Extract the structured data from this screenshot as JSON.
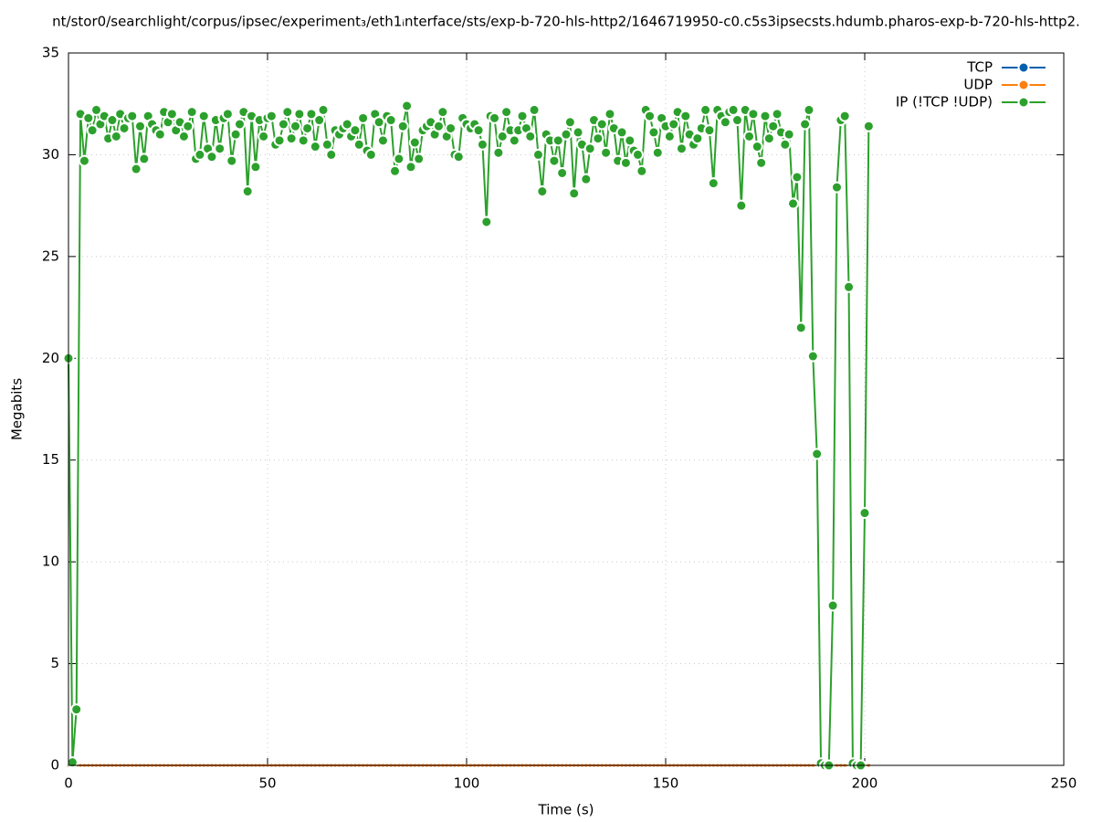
{
  "chart_data": {
    "type": "line",
    "title": "nt/stor0/searchlight/corpus/ipsec/experiment₃/eth1ᵢnterface/sts/exp-b-720-hls-http2/1646719950-c0.c5s3ipsecsts.hdumb.pharos-exp-b-720-hls-http2.",
    "x_label": "Time (s)",
    "y_label": "Megabits",
    "x": [
      0,
      1,
      2,
      3,
      4,
      5,
      6,
      7,
      8,
      9,
      10,
      11,
      12,
      13,
      14,
      15,
      16,
      17,
      18,
      19,
      20,
      21,
      22,
      23,
      24,
      25,
      26,
      27,
      28,
      29,
      30,
      31,
      32,
      33,
      34,
      35,
      36,
      37,
      38,
      39,
      40,
      41,
      42,
      43,
      44,
      45,
      46,
      47,
      48,
      49,
      50,
      51,
      52,
      53,
      54,
      55,
      56,
      57,
      58,
      59,
      60,
      61,
      62,
      63,
      64,
      65,
      66,
      67,
      68,
      69,
      70,
      71,
      72,
      73,
      74,
      75,
      76,
      77,
      78,
      79,
      80,
      81,
      82,
      83,
      84,
      85,
      86,
      87,
      88,
      89,
      90,
      91,
      92,
      93,
      94,
      95,
      96,
      97,
      98,
      99,
      100,
      101,
      102,
      103,
      104,
      105,
      106,
      107,
      108,
      109,
      110,
      111,
      112,
      113,
      114,
      115,
      116,
      117,
      118,
      119,
      120,
      121,
      122,
      123,
      124,
      125,
      126,
      127,
      128,
      129,
      130,
      131,
      132,
      133,
      134,
      135,
      136,
      137,
      138,
      139,
      140,
      141,
      142,
      143,
      144,
      145,
      146,
      147,
      148,
      149,
      150,
      151,
      152,
      153,
      154,
      155,
      156,
      157,
      158,
      159,
      160,
      161,
      162,
      163,
      164,
      165,
      166,
      167,
      168,
      169,
      170,
      171,
      172,
      173,
      174,
      175,
      176,
      177,
      178,
      179,
      180,
      181,
      182,
      183,
      184,
      185,
      186,
      187,
      188,
      189,
      190,
      191,
      192,
      193,
      194,
      195,
      196,
      197,
      198,
      199,
      200,
      201
    ],
    "series": [
      {
        "name": "TCP",
        "color": "#0060ad",
        "values": [
          0,
          0,
          0,
          0,
          0,
          0,
          0,
          0,
          0,
          0,
          0,
          0,
          0,
          0,
          0,
          0,
          0,
          0,
          0,
          0,
          0,
          0,
          0,
          0,
          0,
          0,
          0,
          0,
          0,
          0,
          0,
          0,
          0,
          0,
          0,
          0,
          0,
          0,
          0,
          0,
          0,
          0,
          0,
          0,
          0,
          0,
          0,
          0,
          0,
          0,
          0,
          0,
          0,
          0,
          0,
          0,
          0,
          0,
          0,
          0,
          0,
          0,
          0,
          0,
          0,
          0,
          0,
          0,
          0,
          0,
          0,
          0,
          0,
          0,
          0,
          0,
          0,
          0,
          0,
          0,
          0,
          0,
          0,
          0,
          0,
          0,
          0,
          0,
          0,
          0,
          0,
          0,
          0,
          0,
          0,
          0,
          0,
          0,
          0,
          0,
          0,
          0,
          0,
          0,
          0,
          0,
          0,
          0,
          0,
          0,
          0,
          0,
          0,
          0,
          0,
          0,
          0,
          0,
          0,
          0,
          0,
          0,
          0,
          0,
          0,
          0,
          0,
          0,
          0,
          0,
          0,
          0,
          0,
          0,
          0,
          0,
          0,
          0,
          0,
          0,
          0,
          0,
          0,
          0,
          0,
          0,
          0,
          0,
          0,
          0,
          0,
          0,
          0,
          0,
          0,
          0,
          0,
          0,
          0,
          0,
          0,
          0,
          0,
          0,
          0,
          0,
          0,
          0,
          0,
          0,
          0,
          0,
          0,
          0,
          0,
          0,
          0,
          0,
          0,
          0,
          0,
          0,
          0,
          0,
          0,
          0,
          0,
          0,
          0,
          0,
          0,
          0,
          0,
          0,
          0,
          0,
          0,
          0,
          0,
          0,
          0,
          0
        ]
      },
      {
        "name": "UDP",
        "color": "#ff7f0e",
        "values": [
          0,
          0,
          0,
          0,
          0,
          0,
          0,
          0,
          0,
          0,
          0,
          0,
          0,
          0,
          0,
          0,
          0,
          0,
          0,
          0,
          0,
          0,
          0,
          0,
          0,
          0,
          0,
          0,
          0,
          0,
          0,
          0,
          0,
          0,
          0,
          0,
          0,
          0,
          0,
          0,
          0,
          0,
          0,
          0,
          0,
          0,
          0,
          0,
          0,
          0,
          0,
          0,
          0,
          0,
          0,
          0,
          0,
          0,
          0,
          0,
          0,
          0,
          0,
          0,
          0,
          0,
          0,
          0,
          0,
          0,
          0,
          0,
          0,
          0,
          0,
          0,
          0,
          0,
          0,
          0,
          0,
          0,
          0,
          0,
          0,
          0,
          0,
          0,
          0,
          0,
          0,
          0,
          0,
          0,
          0,
          0,
          0,
          0,
          0,
          0,
          0,
          0,
          0,
          0,
          0,
          0,
          0,
          0,
          0,
          0,
          0,
          0,
          0,
          0,
          0,
          0,
          0,
          0,
          0,
          0,
          0,
          0,
          0,
          0,
          0,
          0,
          0,
          0,
          0,
          0,
          0,
          0,
          0,
          0,
          0,
          0,
          0,
          0,
          0,
          0,
          0,
          0,
          0,
          0,
          0,
          0,
          0,
          0,
          0,
          0,
          0,
          0,
          0,
          0,
          0,
          0,
          0,
          0,
          0,
          0,
          0,
          0,
          0,
          0,
          0,
          0,
          0,
          0,
          0,
          0,
          0,
          0,
          0,
          0,
          0,
          0,
          0,
          0,
          0,
          0,
          0,
          0,
          0,
          0,
          0,
          0,
          0,
          0,
          0,
          0,
          0,
          0,
          0,
          0,
          0,
          0,
          0,
          0,
          0,
          0,
          0,
          0
        ]
      },
      {
        "name": "IP (!TCP  !UDP)",
        "color": "#2ca02c",
        "values": [
          20,
          0.15,
          2.75,
          32,
          29.7,
          31.8,
          31.2,
          32.2,
          31.5,
          31.9,
          30.8,
          31.7,
          30.9,
          32.0,
          31.3,
          31.8,
          31.9,
          29.3,
          31.4,
          29.8,
          31.9,
          31.5,
          31.2,
          31.0,
          32.1,
          31.6,
          32.0,
          31.2,
          31.6,
          30.9,
          31.4,
          32.1,
          29.8,
          30.0,
          31.9,
          30.3,
          29.9,
          31.7,
          30.3,
          31.8,
          32.0,
          29.7,
          31.0,
          31.5,
          32.1,
          28.2,
          31.9,
          29.4,
          31.7,
          30.9,
          31.8,
          31.9,
          30.5,
          30.7,
          31.5,
          32.1,
          30.8,
          31.4,
          32.0,
          30.7,
          31.3,
          32.0,
          30.4,
          31.7,
          32.2,
          30.5,
          30.0,
          31.2,
          31.0,
          31.3,
          31.5,
          30.9,
          31.2,
          30.5,
          31.8,
          30.2,
          30.0,
          32.0,
          31.6,
          30.7,
          31.9,
          31.7,
          29.2,
          29.8,
          31.4,
          32.4,
          29.4,
          30.6,
          29.8,
          31.2,
          31.4,
          31.6,
          31.0,
          31.4,
          32.1,
          30.9,
          31.3,
          30.0,
          29.9,
          31.8,
          31.5,
          31.3,
          31.5,
          31.2,
          30.5,
          26.7,
          31.9,
          31.8,
          30.1,
          30.9,
          32.1,
          31.2,
          30.7,
          31.2,
          31.9,
          31.3,
          30.9,
          32.2,
          30.0,
          28.2,
          31.0,
          30.7,
          29.7,
          30.7,
          29.1,
          31.0,
          31.6,
          28.1,
          31.1,
          30.5,
          28.8,
          30.3,
          31.7,
          30.8,
          31.5,
          30.1,
          32.0,
          31.3,
          29.7,
          31.1,
          29.6,
          30.7,
          30.2,
          30.0,
          29.2,
          32.2,
          31.9,
          31.1,
          30.1,
          31.8,
          31.4,
          30.9,
          31.5,
          32.1,
          30.3,
          31.9,
          31.0,
          30.5,
          30.8,
          31.3,
          32.2,
          31.2,
          28.6,
          32.2,
          31.9,
          31.6,
          32.1,
          32.2,
          31.7,
          27.5,
          32.2,
          30.9,
          32.0,
          30.4,
          29.6,
          31.9,
          30.8,
          31.4,
          32.0,
          31.1,
          30.5,
          31.0,
          27.6,
          28.9,
          21.5,
          31.5,
          32.2,
          20.1,
          15.3,
          0.1,
          0,
          0,
          7.85,
          28.4,
          31.7,
          31.9,
          23.5,
          0.1,
          0,
          0,
          12.4,
          31.4
        ]
      }
    ],
    "xlim": [
      0,
      250
    ],
    "xticks": [
      0,
      50,
      100,
      150,
      200,
      250
    ],
    "ylim": [
      0,
      35
    ],
    "yticks": [
      0,
      5,
      10,
      15,
      20,
      25,
      30,
      35
    ],
    "grid": true,
    "legend": "top-right"
  }
}
